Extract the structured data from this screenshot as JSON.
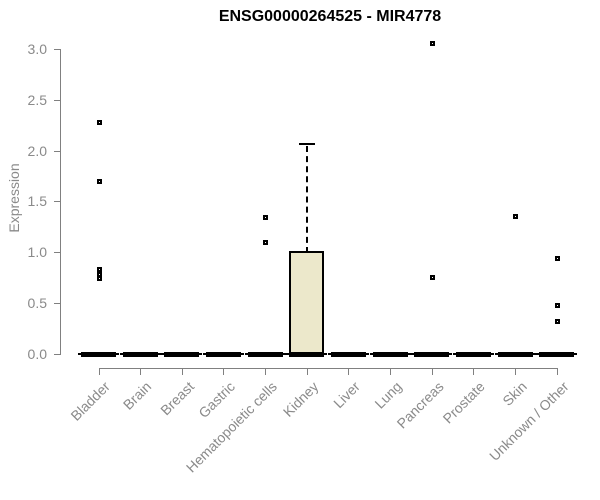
{
  "chart_data": {
    "type": "box",
    "title": "ENSG00000264525 - MIR4778",
    "ylabel": "Expression",
    "xlabel": "",
    "ylim": [
      0,
      3
    ],
    "yticks": [
      "0.0",
      "0.5",
      "1.0",
      "1.5",
      "2.0",
      "2.5",
      "3.0"
    ],
    "grid": false,
    "legend": "none",
    "categories": [
      "Bladder",
      "Brain",
      "Breast",
      "Gastric",
      "Hematopoietic cells",
      "Kidney",
      "Liver",
      "Lung",
      "Pancreas",
      "Prostate",
      "Skin",
      "Unknown / Other"
    ],
    "boxes": [
      {
        "category": "Bladder",
        "q1": 0,
        "median": 0,
        "q3": 0,
        "whisker_low": 0,
        "whisker_high": 0,
        "outliers": [
          2.28,
          1.7,
          0.84,
          0.79,
          0.75
        ]
      },
      {
        "category": "Brain",
        "q1": 0,
        "median": 0,
        "q3": 0,
        "whisker_low": 0,
        "whisker_high": 0,
        "outliers": []
      },
      {
        "category": "Breast",
        "q1": 0,
        "median": 0,
        "q3": 0,
        "whisker_low": 0,
        "whisker_high": 0,
        "outliers": []
      },
      {
        "category": "Gastric",
        "q1": 0,
        "median": 0,
        "q3": 0,
        "whisker_low": 0,
        "whisker_high": 0,
        "outliers": []
      },
      {
        "category": "Hematopoietic cells",
        "q1": 0,
        "median": 0,
        "q3": 0,
        "whisker_low": 0,
        "whisker_high": 0,
        "outliers": [
          1.35,
          1.1
        ]
      },
      {
        "category": "Kidney",
        "q1": 0,
        "median": 0,
        "q3": 1.0,
        "whisker_low": 0,
        "whisker_high": 2.07,
        "outliers": []
      },
      {
        "category": "Liver",
        "q1": 0,
        "median": 0,
        "q3": 0,
        "whisker_low": 0,
        "whisker_high": 0,
        "outliers": []
      },
      {
        "category": "Lung",
        "q1": 0,
        "median": 0,
        "q3": 0,
        "whisker_low": 0,
        "whisker_high": 0,
        "outliers": []
      },
      {
        "category": "Pancreas",
        "q1": 0,
        "median": 0,
        "q3": 0,
        "whisker_low": 0,
        "whisker_high": 0,
        "outliers": [
          3.06,
          0.76
        ]
      },
      {
        "category": "Prostate",
        "q1": 0,
        "median": 0,
        "q3": 0,
        "whisker_low": 0,
        "whisker_high": 0,
        "outliers": []
      },
      {
        "category": "Skin",
        "q1": 0,
        "median": 0,
        "q3": 0,
        "whisker_low": 0,
        "whisker_high": 0,
        "outliers": [
          1.36
        ]
      },
      {
        "category": "Unknown / Other",
        "q1": 0,
        "median": 0,
        "q3": 0,
        "whisker_low": 0,
        "whisker_high": 0,
        "outliers": [
          0.94,
          0.48,
          0.32
        ]
      }
    ],
    "colors": {
      "background": "#ffffff",
      "box_fill": "#ece8cb",
      "box_border": "#000000",
      "median": "#000000",
      "whisker": "#000000",
      "outlier_border": "#000000",
      "axis": "#808080",
      "tick_label": "#8a8a8a",
      "title": "#000000"
    }
  }
}
